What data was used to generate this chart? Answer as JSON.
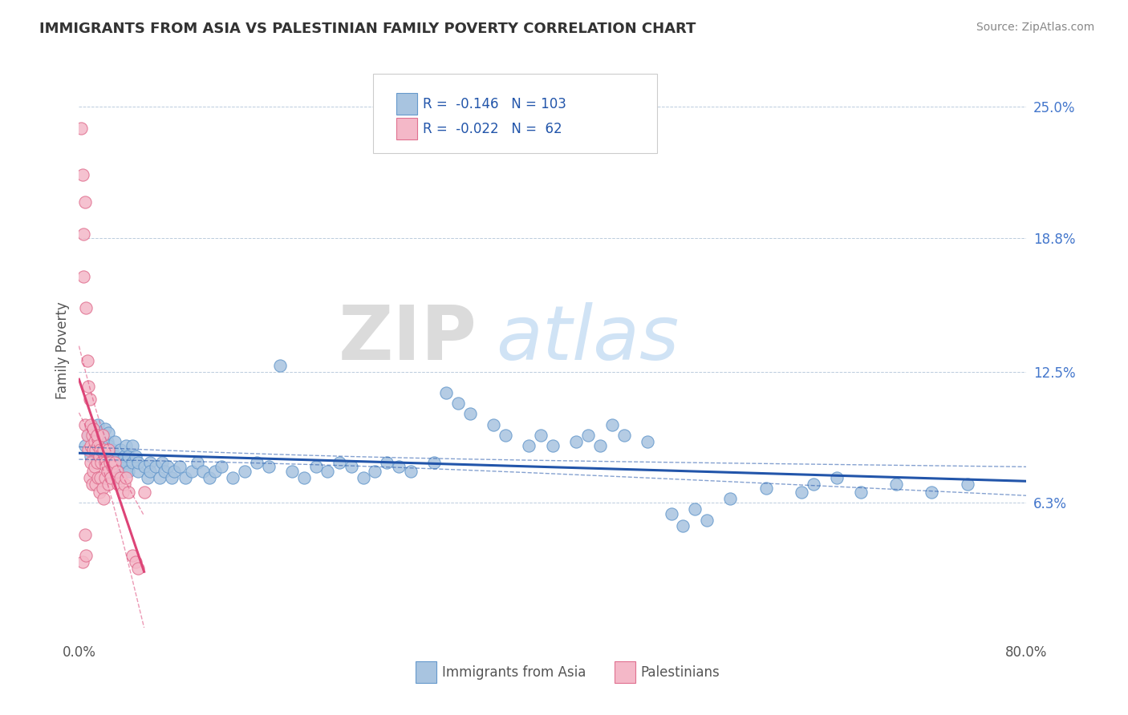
{
  "title": "IMMIGRANTS FROM ASIA VS PALESTINIAN FAMILY POVERTY CORRELATION CHART",
  "source": "Source: ZipAtlas.com",
  "ylabel": "Family Poverty",
  "x_min": 0.0,
  "x_max": 0.8,
  "y_min": 0.0,
  "y_max": 0.27,
  "x_tick_positions": [
    0.0,
    0.1,
    0.2,
    0.3,
    0.4,
    0.5,
    0.6,
    0.7,
    0.8
  ],
  "x_tick_labels": [
    "0.0%",
    "",
    "",
    "",
    "",
    "",
    "",
    "",
    "80.0%"
  ],
  "y_tick_labels_right": [
    "6.3%",
    "12.5%",
    "18.8%",
    "25.0%"
  ],
  "y_tick_vals_right": [
    0.063,
    0.125,
    0.188,
    0.25
  ],
  "legend_r": [
    -0.146,
    -0.022
  ],
  "legend_n": [
    103,
    62
  ],
  "blue_color": "#A8C4E0",
  "blue_edge_color": "#6699CC",
  "pink_color": "#F4B8C8",
  "pink_edge_color": "#E07090",
  "trend_blue": "#2255AA",
  "trend_pink": "#DD4477",
  "watermark_zip": "ZIP",
  "watermark_atlas": "atlas",
  "blue_dots_x": [
    0.005,
    0.008,
    0.01,
    0.01,
    0.012,
    0.015,
    0.015,
    0.016,
    0.018,
    0.018,
    0.02,
    0.02,
    0.02,
    0.022,
    0.022,
    0.022,
    0.024,
    0.024,
    0.025,
    0.025,
    0.025,
    0.028,
    0.028,
    0.03,
    0.03,
    0.032,
    0.032,
    0.035,
    0.035,
    0.038,
    0.038,
    0.04,
    0.04,
    0.042,
    0.042,
    0.045,
    0.045,
    0.048,
    0.05,
    0.05,
    0.055,
    0.058,
    0.06,
    0.06,
    0.065,
    0.068,
    0.07,
    0.072,
    0.075,
    0.078,
    0.08,
    0.085,
    0.09,
    0.095,
    0.1,
    0.105,
    0.11,
    0.115,
    0.12,
    0.13,
    0.14,
    0.15,
    0.16,
    0.17,
    0.18,
    0.19,
    0.2,
    0.21,
    0.22,
    0.23,
    0.24,
    0.25,
    0.26,
    0.27,
    0.28,
    0.3,
    0.31,
    0.32,
    0.33,
    0.35,
    0.36,
    0.38,
    0.39,
    0.4,
    0.42,
    0.43,
    0.44,
    0.45,
    0.46,
    0.48,
    0.5,
    0.51,
    0.52,
    0.53,
    0.55,
    0.58,
    0.61,
    0.62,
    0.64,
    0.66,
    0.69,
    0.72,
    0.75
  ],
  "blue_dots_y": [
    0.09,
    0.095,
    0.085,
    0.098,
    0.092,
    0.088,
    0.095,
    0.1,
    0.082,
    0.09,
    0.095,
    0.085,
    0.092,
    0.088,
    0.098,
    0.082,
    0.092,
    0.085,
    0.09,
    0.082,
    0.096,
    0.088,
    0.08,
    0.085,
    0.092,
    0.082,
    0.075,
    0.088,
    0.08,
    0.085,
    0.078,
    0.082,
    0.09,
    0.085,
    0.078,
    0.082,
    0.09,
    0.085,
    0.078,
    0.082,
    0.08,
    0.075,
    0.082,
    0.078,
    0.08,
    0.075,
    0.082,
    0.078,
    0.08,
    0.075,
    0.078,
    0.08,
    0.075,
    0.078,
    0.082,
    0.078,
    0.075,
    0.078,
    0.08,
    0.075,
    0.078,
    0.082,
    0.08,
    0.128,
    0.078,
    0.075,
    0.08,
    0.078,
    0.082,
    0.08,
    0.075,
    0.078,
    0.082,
    0.08,
    0.078,
    0.082,
    0.115,
    0.11,
    0.105,
    0.1,
    0.095,
    0.09,
    0.095,
    0.09,
    0.092,
    0.095,
    0.09,
    0.1,
    0.095,
    0.092,
    0.058,
    0.052,
    0.06,
    0.055,
    0.065,
    0.07,
    0.068,
    0.072,
    0.075,
    0.068,
    0.072,
    0.068,
    0.072
  ],
  "pink_dots_x": [
    0.002,
    0.003,
    0.003,
    0.004,
    0.004,
    0.005,
    0.005,
    0.005,
    0.006,
    0.006,
    0.007,
    0.007,
    0.008,
    0.008,
    0.009,
    0.009,
    0.01,
    0.01,
    0.01,
    0.011,
    0.011,
    0.012,
    0.012,
    0.012,
    0.013,
    0.013,
    0.014,
    0.014,
    0.015,
    0.015,
    0.016,
    0.016,
    0.017,
    0.017,
    0.018,
    0.018,
    0.019,
    0.02,
    0.02,
    0.021,
    0.021,
    0.022,
    0.022,
    0.023,
    0.024,
    0.025,
    0.025,
    0.026,
    0.027,
    0.028,
    0.03,
    0.032,
    0.033,
    0.035,
    0.037,
    0.038,
    0.04,
    0.042,
    0.045,
    0.048,
    0.05,
    0.055
  ],
  "pink_dots_y": [
    0.24,
    0.035,
    0.218,
    0.19,
    0.17,
    0.205,
    0.048,
    0.1,
    0.155,
    0.038,
    0.13,
    0.095,
    0.118,
    0.088,
    0.112,
    0.075,
    0.1,
    0.09,
    0.082,
    0.095,
    0.072,
    0.098,
    0.088,
    0.078,
    0.092,
    0.08,
    0.088,
    0.072,
    0.095,
    0.082,
    0.09,
    0.075,
    0.085,
    0.068,
    0.088,
    0.075,
    0.082,
    0.095,
    0.07,
    0.088,
    0.065,
    0.082,
    0.075,
    0.08,
    0.078,
    0.088,
    0.072,
    0.082,
    0.075,
    0.08,
    0.082,
    0.078,
    0.072,
    0.075,
    0.068,
    0.072,
    0.075,
    0.068,
    0.038,
    0.035,
    0.032,
    0.068
  ]
}
